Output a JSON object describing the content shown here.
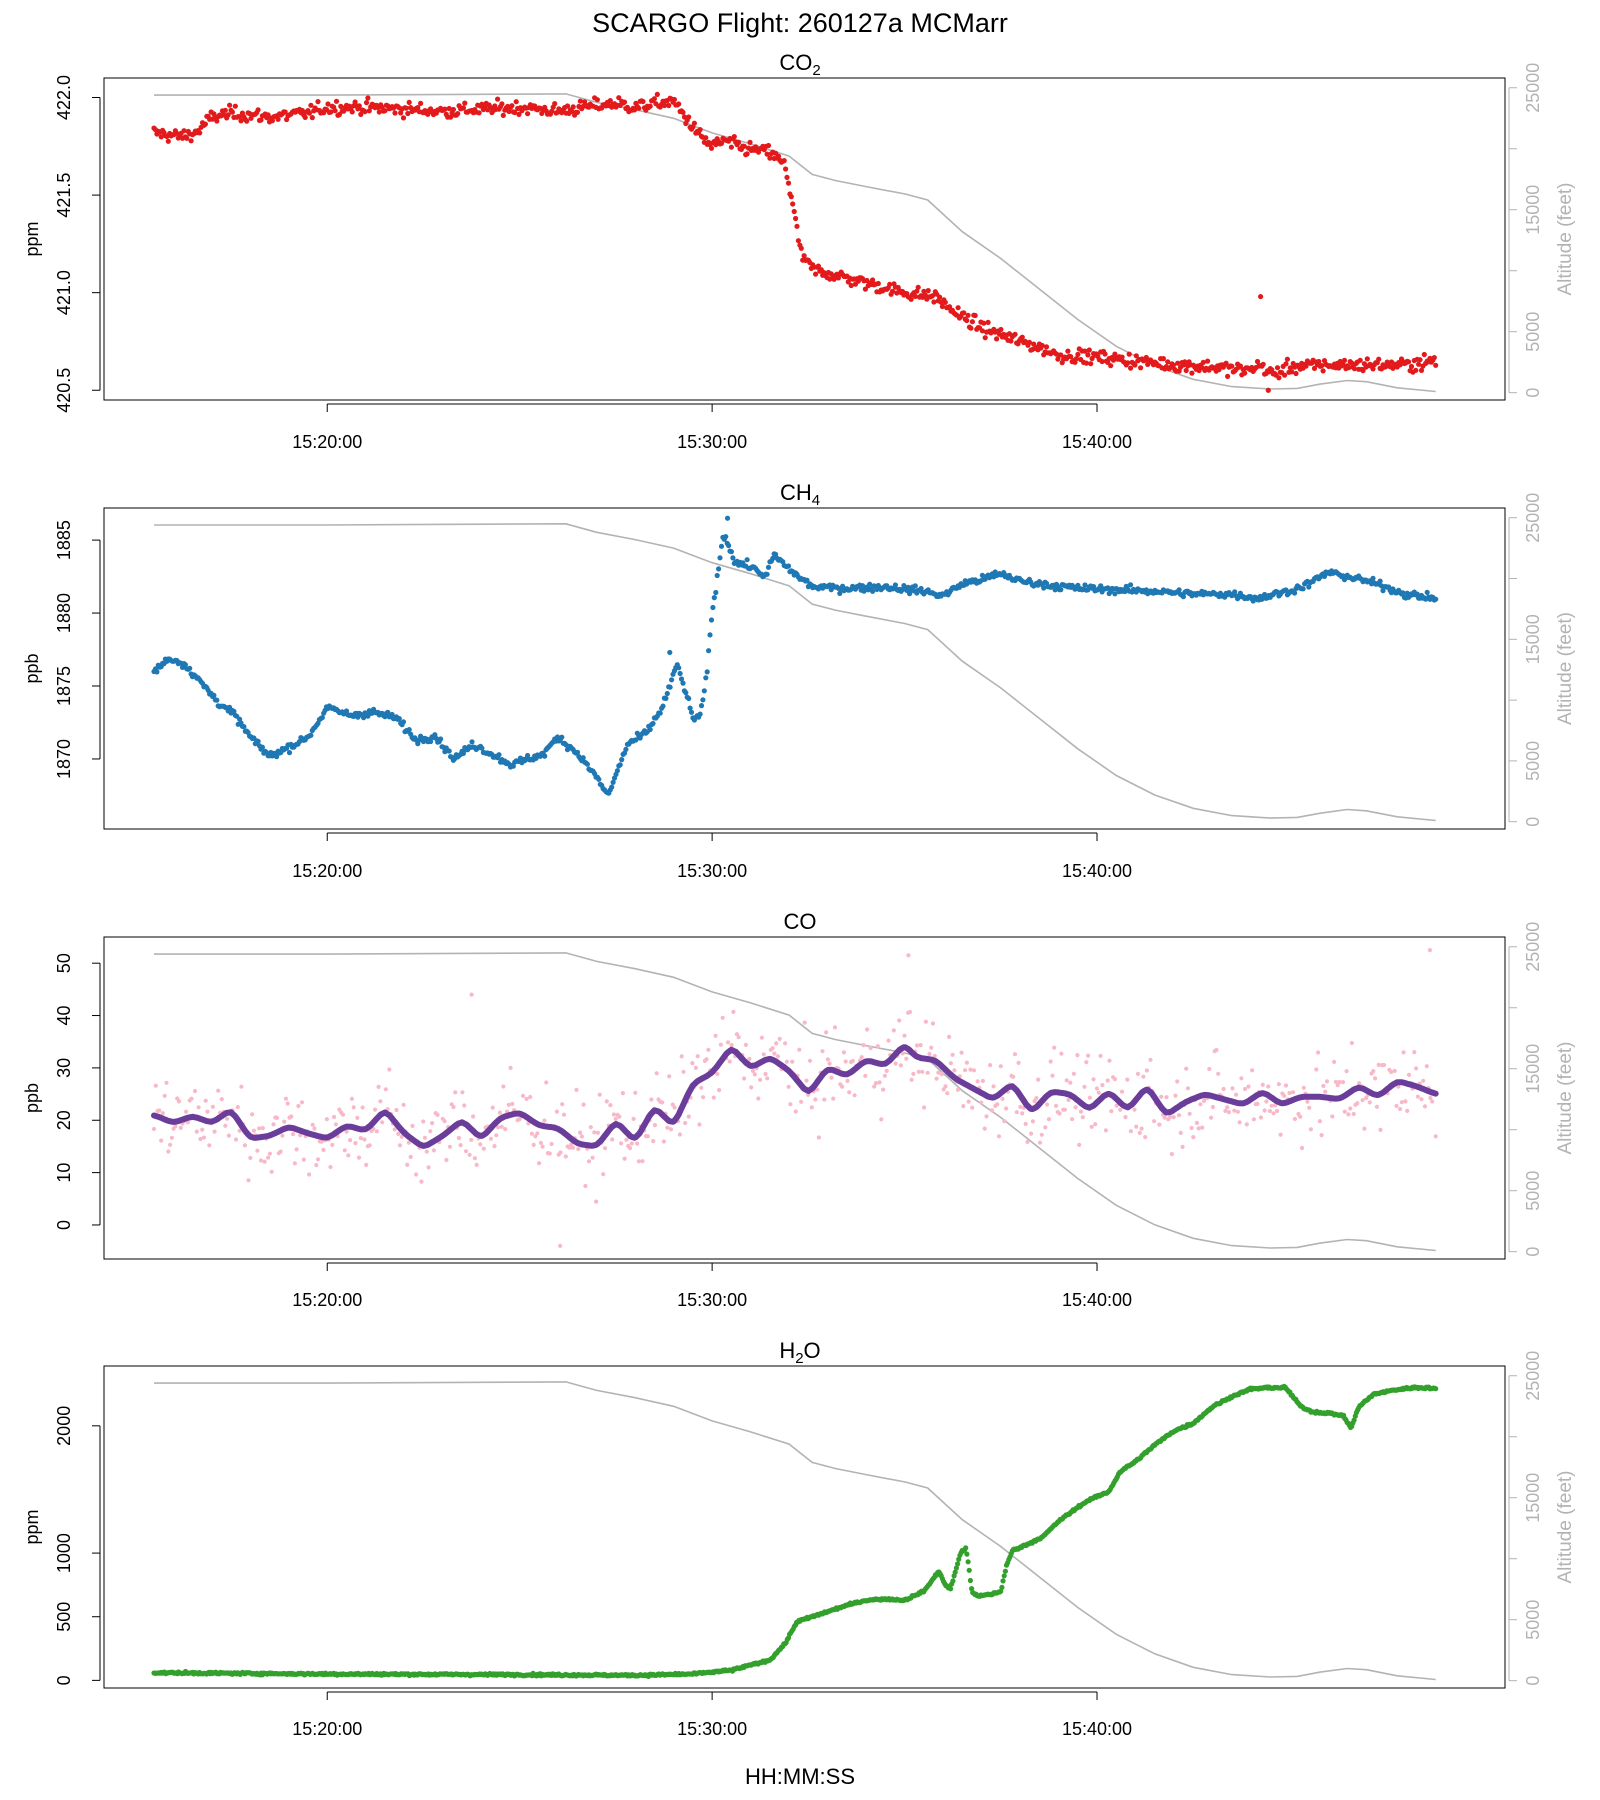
{
  "figure": {
    "title": "SCARGO Flight: 260127a  MCMarr",
    "xlabel": "HH:MM:SS",
    "altitude_axis_label": "Altitude (feet)"
  },
  "colors": {
    "co2": "#e31a1c",
    "ch4": "#1f78b4",
    "co_raw": "#f8b8c8",
    "co_smooth": "#6a3d9a",
    "h2o": "#33a02c",
    "altitude": "#b3b3b3",
    "axis": "#000000",
    "alt_axis": "#b3b3b3"
  },
  "chart_data": [
    {
      "type": "scatter",
      "id": "co2",
      "title": "CO",
      "title_sub": "2",
      "ylabel": "ppm",
      "xlabel": "",
      "x_unit": "minutes after 15:00:00",
      "xlim": [
        14.2,
        50.6
      ],
      "x_ticks": [
        20,
        30,
        40
      ],
      "x_tick_labels": [
        "15:20:00",
        "15:30:00",
        "15:40:00"
      ],
      "ylim": [
        420.45,
        422.1
      ],
      "y_ticks": [
        420.5,
        421.0,
        421.5,
        422.0
      ],
      "y_tick_labels": [
        "420.5",
        "421.0",
        "421.5",
        "422.0"
      ],
      "y2_label": "Altitude (feet)",
      "y2lim": [
        -600,
        25800
      ],
      "y2_ticks": [
        0,
        5000,
        15000,
        25000
      ],
      "y2_tick_labels": [
        "0",
        "5000",
        "15000",
        "25000"
      ],
      "series": [
        {
          "name": "CO2",
          "style": "points",
          "noise": 0.035,
          "x": [
            15.5,
            16.2,
            16.6,
            17.0,
            17.5,
            18.5,
            19.5,
            20.0,
            21.0,
            22.0,
            23.0,
            24.0,
            25.0,
            26.0,
            27.0,
            27.5,
            28.0,
            28.5,
            29.0,
            29.3,
            29.7,
            30.0,
            30.3,
            30.8,
            31.5,
            31.9,
            32.1,
            32.3,
            32.6,
            33.0,
            34.0,
            35.0,
            35.8,
            36.3,
            37.0,
            38.0,
            38.5,
            39.0,
            40.0,
            41.0,
            42.0,
            43.0,
            43.9,
            44.2,
            44.6,
            45.0,
            46.0,
            47.0,
            48.0,
            48.8
          ],
          "y": [
            421.82,
            421.8,
            421.82,
            421.9,
            421.92,
            421.9,
            421.92,
            421.95,
            421.95,
            421.94,
            421.93,
            421.94,
            421.95,
            421.93,
            421.96,
            421.97,
            421.95,
            421.97,
            421.98,
            421.9,
            421.8,
            421.75,
            421.78,
            421.74,
            421.72,
            421.65,
            421.45,
            421.2,
            421.12,
            421.1,
            421.05,
            421.0,
            420.98,
            420.9,
            420.82,
            420.75,
            420.72,
            420.68,
            420.67,
            420.65,
            420.63,
            420.62,
            420.6,
            420.63,
            420.58,
            420.62,
            420.63,
            420.63,
            420.63,
            420.65
          ]
        },
        {
          "name": "Altitude",
          "axis": "y2",
          "style": "line",
          "x": [
            15.5,
            20.0,
            26.2,
            27.0,
            28.0,
            29.0,
            30.0,
            31.0,
            32.0,
            32.6,
            33.2,
            34.0,
            35.0,
            35.6,
            36.5,
            37.5,
            38.5,
            39.5,
            40.5,
            41.5,
            42.5,
            43.5,
            44.5,
            45.2,
            45.8,
            46.5,
            47.0,
            47.8,
            48.8
          ],
          "y": [
            24400,
            24400,
            24500,
            23800,
            23200,
            22500,
            21300,
            20400,
            19400,
            17900,
            17400,
            16900,
            16300,
            15800,
            13200,
            11000,
            8500,
            6000,
            3800,
            2200,
            1100,
            500,
            300,
            350,
            700,
            1000,
            900,
            400,
            100
          ]
        }
      ],
      "annotations": [
        {
          "x": 44.25,
          "y": 420.98
        },
        {
          "x": 44.45,
          "y": 420.5
        }
      ]
    },
    {
      "type": "scatter",
      "id": "ch4",
      "title": "CH",
      "title_sub": "4",
      "ylabel": "ppb",
      "xlabel": "",
      "xlim": [
        14.2,
        50.6
      ],
      "x_ticks": [
        20,
        30,
        40
      ],
      "x_tick_labels": [
        "15:20:00",
        "15:30:00",
        "15:40:00"
      ],
      "ylim": [
        1865.2,
        1887.2
      ],
      "y_ticks": [
        1870,
        1875,
        1880,
        1885
      ],
      "y_tick_labels": [
        "1870",
        "1875",
        "1880",
        "1885"
      ],
      "y2_label": "Altitude (feet)",
      "y2lim": [
        -600,
        25800
      ],
      "y2_ticks": [
        0,
        5000,
        15000,
        25000
      ],
      "y2_tick_labels": [
        "0",
        "5000",
        "15000",
        "25000"
      ],
      "series": [
        {
          "name": "CH4",
          "style": "points",
          "noise": 0.25,
          "x": [
            15.5,
            15.9,
            16.3,
            16.8,
            17.2,
            17.6,
            18.0,
            18.5,
            19.0,
            19.5,
            20.0,
            20.6,
            21.2,
            21.8,
            22.3,
            22.8,
            23.3,
            23.8,
            24.3,
            24.8,
            25.2,
            25.6,
            26.0,
            26.5,
            26.9,
            27.3,
            27.8,
            28.3,
            28.7,
            29.1,
            29.5,
            29.7,
            29.85,
            30.0,
            30.3,
            30.6,
            31.0,
            31.4,
            31.6,
            32.0,
            32.6,
            33.5,
            34.5,
            35.5,
            36.0,
            36.5,
            37.0,
            37.5,
            38.0,
            38.8,
            39.5,
            40.5,
            41.5,
            42.5,
            43.5,
            44.2,
            44.6,
            45.0,
            45.5,
            46.0,
            46.5,
            47.0,
            47.5,
            48.0,
            48.8
          ],
          "y": [
            1876.0,
            1876.9,
            1876.5,
            1875.0,
            1873.8,
            1873.0,
            1871.5,
            1870.2,
            1870.8,
            1871.5,
            1873.5,
            1873.0,
            1873.2,
            1872.8,
            1871.3,
            1871.6,
            1870.0,
            1871.0,
            1870.3,
            1869.6,
            1870.0,
            1870.3,
            1871.5,
            1870.4,
            1869.1,
            1867.5,
            1871.0,
            1871.8,
            1873.5,
            1876.5,
            1872.8,
            1873.0,
            1875.5,
            1880.0,
            1885.5,
            1883.5,
            1883.2,
            1882.5,
            1884.0,
            1883.0,
            1881.8,
            1881.7,
            1881.8,
            1881.5,
            1881.2,
            1882.0,
            1882.3,
            1882.7,
            1882.2,
            1881.9,
            1881.7,
            1881.6,
            1881.5,
            1881.3,
            1881.3,
            1881.0,
            1881.3,
            1881.5,
            1882.0,
            1882.8,
            1882.5,
            1882.2,
            1881.8,
            1881.3,
            1881.0
          ]
        },
        {
          "name": "Altitude",
          "axis": "y2",
          "style": "line",
          "x": [
            15.5,
            20.0,
            26.2,
            27.0,
            28.0,
            29.0,
            30.0,
            31.0,
            32.0,
            32.6,
            33.2,
            34.0,
            35.0,
            35.6,
            36.5,
            37.5,
            38.5,
            39.5,
            40.5,
            41.5,
            42.5,
            43.5,
            44.5,
            45.2,
            45.8,
            46.5,
            47.0,
            47.8,
            48.8
          ],
          "y": [
            24400,
            24400,
            24500,
            23800,
            23200,
            22500,
            21300,
            20400,
            19400,
            17900,
            17400,
            16900,
            16300,
            15800,
            13200,
            11000,
            8500,
            6000,
            3800,
            2200,
            1100,
            500,
            300,
            350,
            700,
            1000,
            900,
            400,
            100
          ]
        }
      ],
      "annotations": [
        {
          "x": 30.4,
          "y": 1886.5
        },
        {
          "x": 28.9,
          "y": 1877.3
        }
      ]
    },
    {
      "type": "scatter",
      "id": "co",
      "title": "CO",
      "title_sub": "",
      "ylabel": "ppb",
      "xlabel": "",
      "xlim": [
        14.2,
        50.6
      ],
      "x_ticks": [
        20,
        30,
        40
      ],
      "x_tick_labels": [
        "15:20:00",
        "15:30:00",
        "15:40:00"
      ],
      "ylim": [
        -6.5,
        55
      ],
      "y_ticks": [
        0,
        10,
        20,
        30,
        40,
        50
      ],
      "y_tick_labels": [
        "0",
        "10",
        "20",
        "30",
        "40",
        "50"
      ],
      "y2_label": "Altitude (feet)",
      "y2lim": [
        -600,
        25800
      ],
      "y2_ticks": [
        0,
        5000,
        15000,
        25000
      ],
      "y2_tick_labels": [
        "0",
        "5000",
        "15000",
        "25000"
      ],
      "series": [
        {
          "name": "CO raw",
          "style": "points",
          "spread": 7.5,
          "x_range": [
            15.5,
            48.8
          ],
          "count": 720
        },
        {
          "name": "CO smoothed",
          "style": "thick-line",
          "x": [
            15.5,
            16.0,
            16.5,
            17.0,
            17.5,
            18.0,
            18.5,
            19.0,
            19.5,
            20.0,
            20.5,
            21.0,
            21.5,
            22.0,
            22.5,
            23.0,
            23.5,
            24.0,
            24.5,
            25.0,
            25.5,
            26.0,
            26.5,
            27.0,
            27.5,
            28.0,
            28.5,
            29.0,
            29.5,
            30.0,
            30.5,
            31.0,
            31.5,
            32.0,
            32.5,
            33.0,
            33.5,
            34.0,
            34.5,
            35.0,
            35.3,
            35.8,
            36.3,
            36.8,
            37.3,
            37.8,
            38.3,
            38.8,
            39.3,
            39.8,
            40.3,
            40.8,
            41.3,
            41.8,
            42.3,
            42.8,
            43.3,
            43.8,
            44.3,
            44.8,
            45.3,
            45.8,
            46.3,
            46.8,
            47.3,
            47.8,
            48.3,
            48.8
          ],
          "y": [
            21.0,
            19.5,
            20.8,
            19.5,
            22.0,
            16.5,
            17.0,
            18.8,
            17.5,
            16.5,
            19.0,
            18.0,
            22.0,
            17.5,
            14.8,
            17.0,
            20.0,
            16.5,
            20.5,
            21.5,
            19.0,
            18.5,
            15.5,
            15.0,
            19.8,
            16.0,
            22.5,
            19.0,
            27.0,
            29.0,
            34.0,
            30.0,
            32.0,
            29.5,
            25.0,
            30.0,
            28.5,
            31.5,
            30.5,
            34.5,
            32.0,
            31.5,
            28.0,
            26.0,
            24.0,
            27.0,
            21.5,
            25.5,
            25.0,
            22.0,
            25.5,
            22.0,
            26.5,
            21.0,
            23.5,
            25.0,
            24.0,
            23.0,
            25.5,
            23.0,
            24.5,
            24.5,
            24.0,
            26.5,
            24.5,
            27.5,
            26.5,
            25.0
          ]
        },
        {
          "name": "Altitude",
          "axis": "y2",
          "style": "line",
          "x": [
            15.5,
            20.0,
            26.2,
            27.0,
            28.0,
            29.0,
            30.0,
            31.0,
            32.0,
            32.6,
            33.2,
            34.0,
            35.0,
            35.6,
            36.5,
            37.5,
            38.5,
            39.5,
            40.5,
            41.5,
            42.5,
            43.5,
            44.5,
            45.2,
            45.8,
            46.5,
            47.0,
            47.8,
            48.8
          ],
          "y": [
            24400,
            24400,
            24500,
            23800,
            23200,
            22500,
            21300,
            20400,
            19400,
            17900,
            17400,
            16900,
            16300,
            15800,
            13200,
            11000,
            8500,
            6000,
            3800,
            2200,
            1100,
            500,
            300,
            350,
            700,
            1000,
            900,
            400,
            100
          ]
        }
      ],
      "annotations": [
        {
          "x": 35.1,
          "y": 51.5
        },
        {
          "x": 48.65,
          "y": 52.5
        },
        {
          "x": 26.05,
          "y": -4.0
        },
        {
          "x": 23.75,
          "y": 44.0
        }
      ]
    },
    {
      "type": "scatter",
      "id": "h2o",
      "title": "H",
      "title_sub": "2",
      "title_suffix": "O",
      "ylabel": "ppm",
      "xlabel": "HH:MM:SS",
      "xlim": [
        14.2,
        50.6
      ],
      "x_ticks": [
        20,
        30,
        40
      ],
      "x_tick_labels": [
        "15:20:00",
        "15:30:00",
        "15:40:00"
      ],
      "ylim": [
        -60,
        2470
      ],
      "y_ticks": [
        0,
        500,
        1000,
        2000
      ],
      "y_tick_labels": [
        "0",
        "500",
        "1000",
        "2000"
      ],
      "y2_label": "Altitude (feet)",
      "y2lim": [
        -600,
        25800
      ],
      "y2_ticks": [
        0,
        5000,
        15000,
        25000
      ],
      "y2_tick_labels": [
        "0",
        "5000",
        "15000",
        "25000"
      ],
      "series": [
        {
          "name": "H2O",
          "style": "points",
          "noise": 8,
          "x": [
            15.5,
            20.0,
            25.0,
            28.0,
            29.5,
            30.5,
            31.5,
            31.9,
            32.2,
            32.4,
            32.7,
            33.0,
            33.5,
            34.0,
            34.5,
            35.0,
            35.5,
            35.9,
            36.05,
            36.2,
            36.45,
            36.6,
            36.75,
            36.9,
            37.3,
            37.5,
            37.65,
            37.8,
            38.2,
            38.6,
            39.0,
            39.5,
            39.8,
            40.3,
            40.6,
            41.0,
            41.5,
            42.0,
            42.5,
            43.0,
            43.5,
            44.0,
            44.5,
            44.9,
            45.3,
            45.6,
            46.0,
            46.4,
            46.6,
            46.8,
            47.2,
            47.7,
            48.2,
            48.6,
            48.8
          ],
          "y": [
            60,
            50,
            45,
            40,
            50,
            80,
            160,
            290,
            460,
            480,
            510,
            540,
            590,
            630,
            640,
            630,
            700,
            860,
            750,
            720,
            1000,
            1040,
            700,
            660,
            680,
            700,
            900,
            1020,
            1070,
            1130,
            1250,
            1360,
            1420,
            1480,
            1640,
            1720,
            1850,
            1960,
            2020,
            2150,
            2230,
            2290,
            2300,
            2300,
            2150,
            2110,
            2100,
            2080,
            1980,
            2150,
            2250,
            2280,
            2300,
            2300,
            2290
          ]
        },
        {
          "name": "Altitude",
          "axis": "y2",
          "style": "line",
          "x": [
            15.5,
            20.0,
            26.2,
            27.0,
            28.0,
            29.0,
            30.0,
            31.0,
            32.0,
            32.6,
            33.2,
            34.0,
            35.0,
            35.6,
            36.5,
            37.5,
            38.5,
            39.5,
            40.5,
            41.5,
            42.5,
            43.5,
            44.5,
            45.2,
            45.8,
            46.5,
            47.0,
            47.8,
            48.8
          ],
          "y": [
            24400,
            24400,
            24500,
            23800,
            23200,
            22500,
            21300,
            20400,
            19400,
            17900,
            17400,
            16900,
            16300,
            15800,
            13200,
            11000,
            8500,
            6000,
            3800,
            2200,
            1100,
            500,
            300,
            350,
            700,
            1000,
            900,
            400,
            100
          ]
        }
      ],
      "annotations": []
    }
  ]
}
